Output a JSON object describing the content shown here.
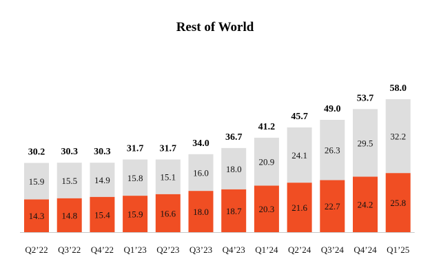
{
  "chart_data": {
    "type": "bar",
    "stacked": true,
    "title": "Rest of World",
    "categories": [
      "Q2’22",
      "Q3’22",
      "Q4’22",
      "Q1’23",
      "Q2’23",
      "Q3’23",
      "Q4’23",
      "Q1’24",
      "Q2’24",
      "Q3’24",
      "Q4’24",
      "Q1’25"
    ],
    "series": [
      {
        "values": [
          14.3,
          14.8,
          15.4,
          15.9,
          16.6,
          18.0,
          18.7,
          20.3,
          21.6,
          22.7,
          24.2,
          25.8
        ],
        "color": "#F04E23"
      },
      {
        "values": [
          15.9,
          15.5,
          14.9,
          15.8,
          15.1,
          16.0,
          18.0,
          20.9,
          24.1,
          26.3,
          29.5,
          32.2
        ],
        "color": "#DEDEDE"
      }
    ],
    "totals": [
      30.2,
      30.3,
      30.3,
      31.7,
      31.7,
      34.0,
      36.7,
      41.2,
      45.7,
      49.0,
      53.7,
      58.0
    ],
    "ylim": [
      0,
      58.0
    ],
    "grid": false,
    "axis_color": "#C8C8C8"
  }
}
